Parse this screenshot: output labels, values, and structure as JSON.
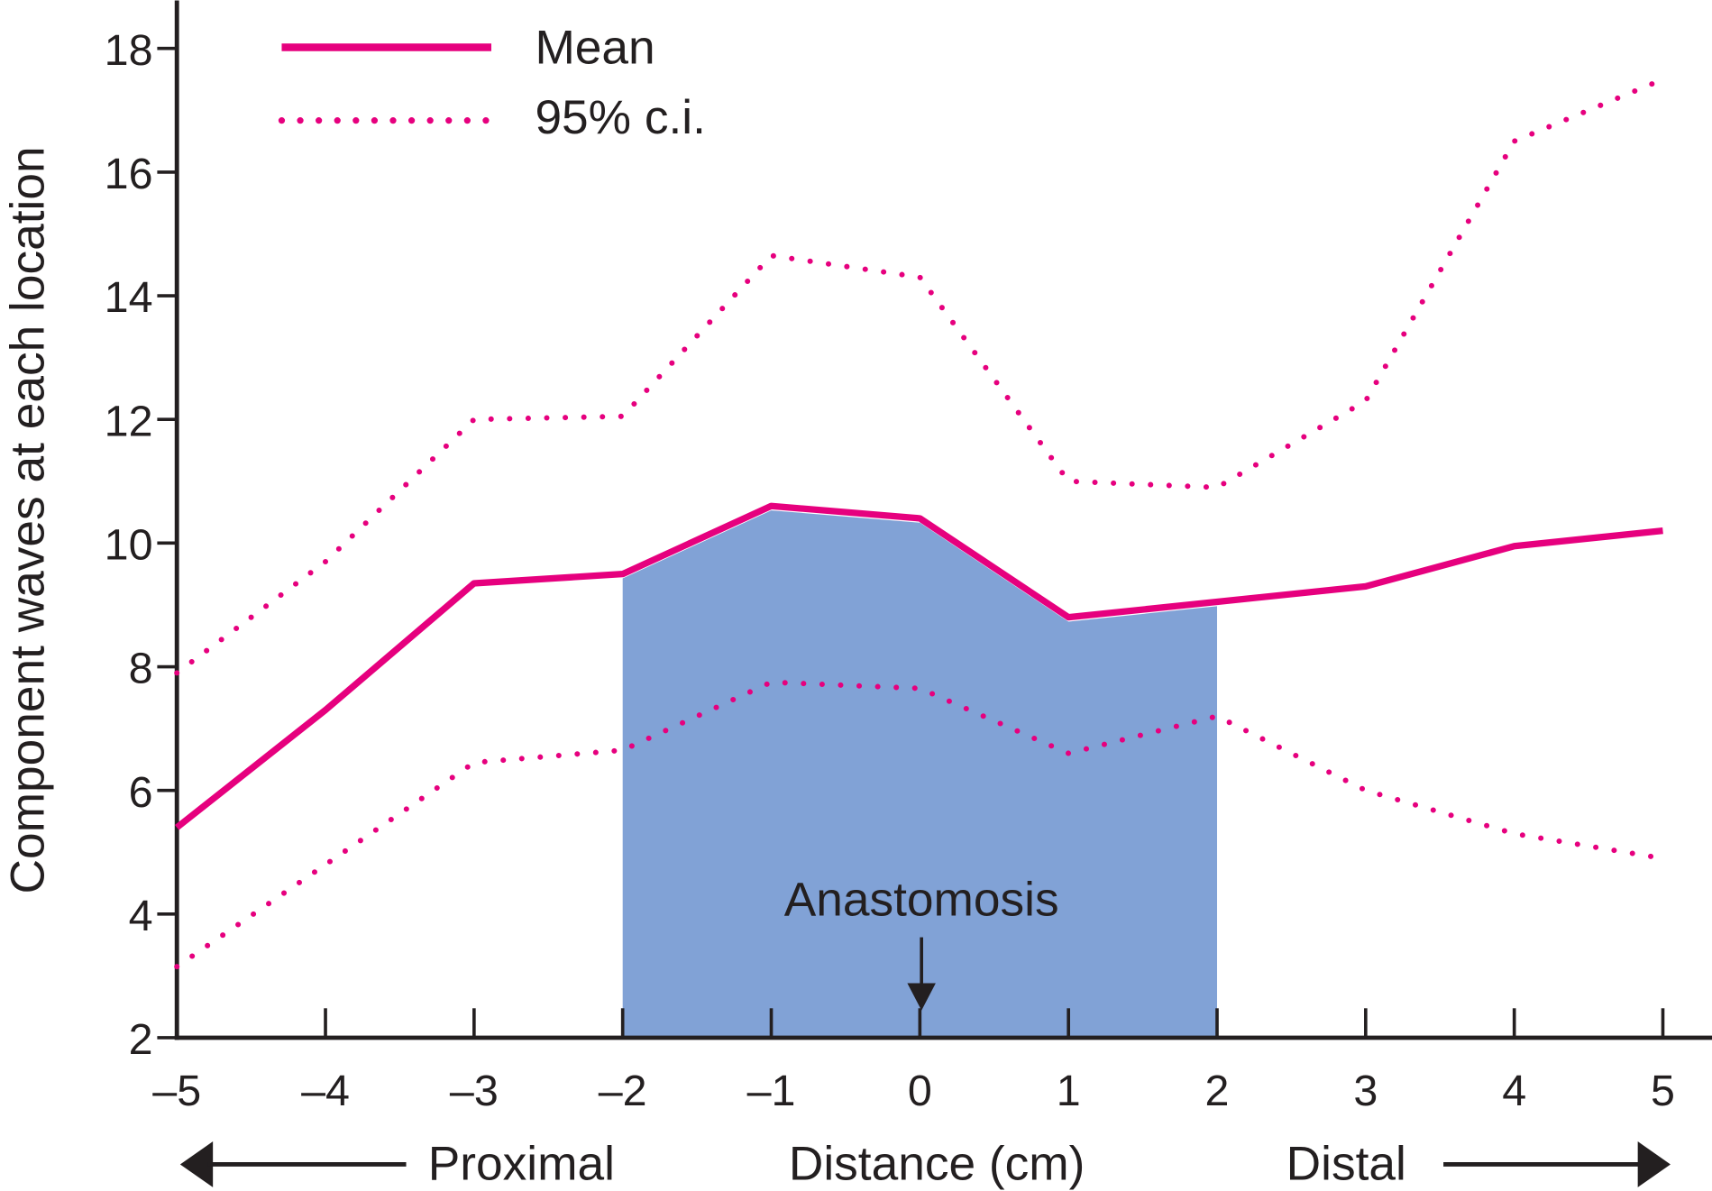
{
  "chart_data": {
    "type": "line",
    "title": "",
    "xlabel": "Distance (cm)",
    "ylabel": "Component waves at each location",
    "x": [
      -5,
      -4,
      -3,
      -2,
      -1,
      0,
      1,
      2,
      3,
      4,
      5
    ],
    "xlim": [
      -5,
      5
    ],
    "ylim": [
      2,
      18.8
    ],
    "x_ticks": [
      "–5",
      "–4",
      "–3",
      "–2",
      "–1",
      "0",
      "1",
      "2",
      "3",
      "4",
      "5"
    ],
    "y_ticks": [
      2,
      4,
      6,
      8,
      10,
      12,
      14,
      16,
      18
    ],
    "grid": false,
    "legend_position": "top-left",
    "series": [
      {
        "name": "Mean",
        "style": "solid",
        "values": [
          5.4,
          7.3,
          9.35,
          9.5,
          10.6,
          10.4,
          8.8,
          9.05,
          9.3,
          9.95,
          10.2
        ]
      },
      {
        "name": "95% c.i.",
        "style": "dotted",
        "bound": "upper",
        "values": [
          7.9,
          9.7,
          12.0,
          12.05,
          14.65,
          14.3,
          11.0,
          10.9,
          12.3,
          16.5,
          17.5
        ]
      },
      {
        "name": "95% c.i.",
        "style": "dotted",
        "bound": "lower",
        "values": [
          3.15,
          4.8,
          6.45,
          6.65,
          7.75,
          7.65,
          6.6,
          7.2,
          6.0,
          5.3,
          4.9
        ]
      }
    ],
    "shaded_region": {
      "x_range": [
        -2,
        2
      ],
      "under": "Mean"
    },
    "annotations": {
      "anastomosis": {
        "text": "Anastomosis",
        "x": 0
      },
      "proximal": "Proximal",
      "distal": "Distal"
    },
    "colors": {
      "line": "#e6007e",
      "shade": "#81a2d6",
      "axis": "#231f20"
    }
  }
}
